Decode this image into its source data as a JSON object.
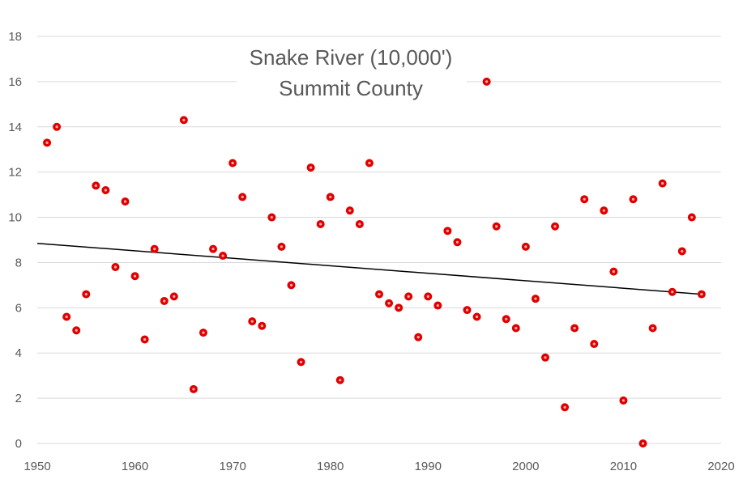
{
  "chart_data": {
    "type": "scatter",
    "title_lines": [
      "Snake River (10,000')",
      "Summit County"
    ],
    "xlabel": "",
    "ylabel": "",
    "xlim": [
      1950,
      2020
    ],
    "ylim": [
      0,
      18
    ],
    "xticks": [
      1950,
      1960,
      1970,
      1980,
      1990,
      2000,
      2010,
      2020
    ],
    "yticks": [
      0,
      2,
      4,
      6,
      8,
      10,
      12,
      14,
      16,
      18
    ],
    "grid": "horizontal",
    "legend": "none",
    "colors": {
      "points": "#e00000",
      "point_center": "#ffb0b0",
      "trendline": "#000000",
      "grid": "#d9d9d9",
      "text": "#595959"
    },
    "series": [
      {
        "x": [
          1951,
          1952,
          1953,
          1954,
          1955,
          1956,
          1957,
          1958,
          1959,
          1960,
          1961,
          1962,
          1963,
          1964,
          1965,
          1966,
          1967,
          1968,
          1969,
          1970,
          1971,
          1972,
          1973,
          1974,
          1975,
          1976,
          1977,
          1978,
          1979,
          1980,
          1981,
          1982,
          1983,
          1984,
          1985,
          1986,
          1987,
          1988,
          1989,
          1990,
          1991,
          1992,
          1993,
          1994,
          1995,
          1996,
          1997,
          1998,
          1999,
          2000,
          2001,
          2002,
          2003,
          2004,
          2005,
          2006,
          2007,
          2008,
          2009,
          2010,
          2011,
          2012,
          2013,
          2014,
          2015,
          2016,
          2017,
          2018
        ],
        "y": [
          13.3,
          14.0,
          5.6,
          5.0,
          6.6,
          11.4,
          11.2,
          7.8,
          10.7,
          7.4,
          4.6,
          8.6,
          6.3,
          6.5,
          14.3,
          2.4,
          4.9,
          8.6,
          8.3,
          12.4,
          10.9,
          5.4,
          5.2,
          10.0,
          8.7,
          7.0,
          3.6,
          12.2,
          9.7,
          10.9,
          2.8,
          10.3,
          9.7,
          12.4,
          6.6,
          6.2,
          6.0,
          6.5,
          4.7,
          6.5,
          6.1,
          9.4,
          8.9,
          5.9,
          5.6,
          16.0,
          9.6,
          5.5,
          5.1,
          8.7,
          6.4,
          3.8,
          9.6,
          1.6,
          5.1,
          10.8,
          4.4,
          10.3,
          7.6,
          1.9,
          10.8,
          0.0,
          5.1,
          11.5,
          6.7,
          8.5,
          10.0,
          6.6
        ]
      }
    ],
    "trendline": {
      "x": [
        1950,
        2018
      ],
      "y": [
        8.85,
        6.6
      ]
    }
  }
}
